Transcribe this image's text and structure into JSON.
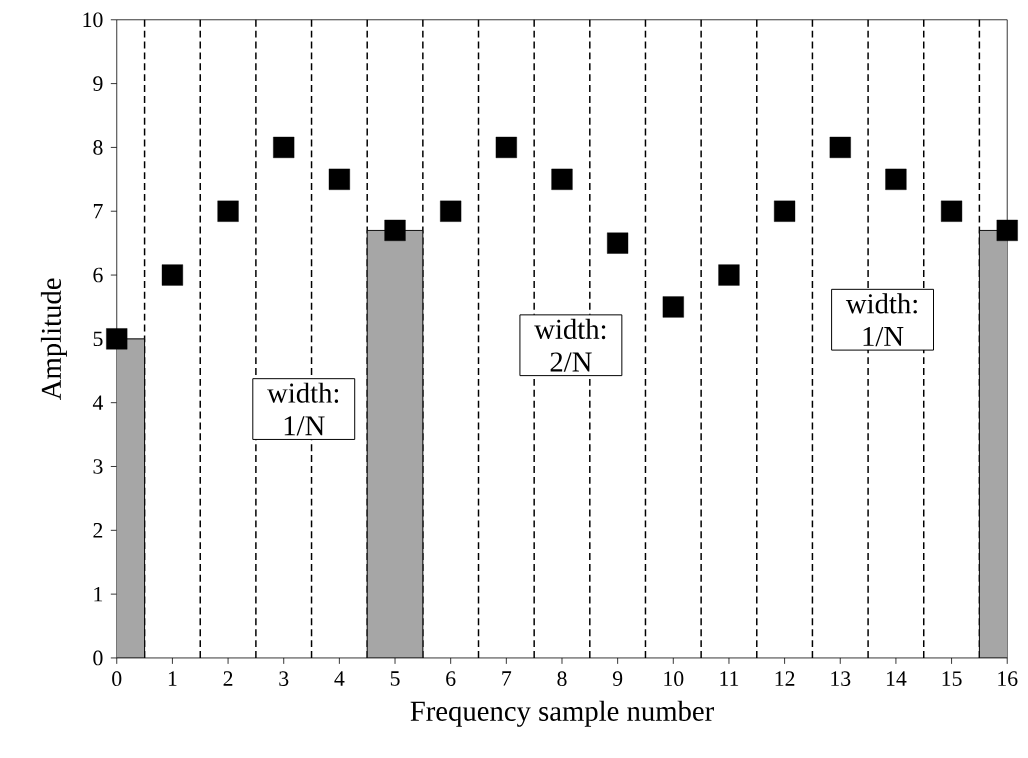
{
  "chart_data": {
    "type": "scatter",
    "xlabel": "Frequency sample number",
    "ylabel": "Amplitude",
    "xlim": [
      0,
      16
    ],
    "ylim": [
      0,
      10
    ],
    "xticks": [
      0,
      1,
      2,
      3,
      4,
      5,
      6,
      7,
      8,
      9,
      10,
      11,
      12,
      13,
      14,
      15,
      16
    ],
    "yticks": [
      0,
      1,
      2,
      3,
      4,
      5,
      6,
      7,
      8,
      9,
      10
    ],
    "series": [
      {
        "type": "bar",
        "color": "#a6a6a6",
        "x": [
          0,
          5,
          16
        ],
        "values": [
          5,
          6.7,
          6.7
        ]
      },
      {
        "color": "#000000",
        "marker": "square",
        "x": [
          0,
          1,
          2,
          3,
          4,
          5,
          6,
          7,
          8,
          9,
          10,
          11,
          12,
          13,
          14,
          15,
          16
        ],
        "values": [
          5,
          6,
          7,
          8,
          7.5,
          6.7,
          7,
          8,
          7.5,
          6.5,
          5.5,
          6,
          7,
          8,
          7.5,
          7,
          6.7
        ]
      }
    ],
    "ref_lines": [
      {
        "axis": "x",
        "value": 0.5,
        "line_style": "dashed"
      },
      {
        "axis": "x",
        "value": 1.5,
        "line_style": "dashed"
      },
      {
        "axis": "x",
        "value": 2.5,
        "line_style": "dashed"
      },
      {
        "axis": "x",
        "value": 3.5,
        "line_style": "dashed"
      },
      {
        "axis": "x",
        "value": 4.5,
        "line_style": "dashed"
      },
      {
        "axis": "x",
        "value": 5.5,
        "line_style": "dashed"
      },
      {
        "axis": "x",
        "value": 6.5,
        "line_style": "dashed"
      },
      {
        "axis": "x",
        "value": 7.5,
        "line_style": "dashed"
      },
      {
        "axis": "x",
        "value": 8.5,
        "line_style": "dashed"
      },
      {
        "axis": "x",
        "value": 9.5,
        "line_style": "dashed"
      },
      {
        "axis": "x",
        "value": 10.5,
        "line_style": "dashed"
      },
      {
        "axis": "x",
        "value": 11.5,
        "line_style": "dashed"
      },
      {
        "axis": "x",
        "value": 12.5,
        "line_style": "dashed"
      },
      {
        "axis": "x",
        "value": 13.5,
        "line_style": "dashed"
      },
      {
        "axis": "x",
        "value": 14.5,
        "line_style": "dashed"
      },
      {
        "axis": "x",
        "value": 15.5,
        "line_style": "dashed"
      }
    ],
    "annotations": [
      "width: 1/N",
      "width: 2/N",
      "width: 1/N"
    ]
  }
}
